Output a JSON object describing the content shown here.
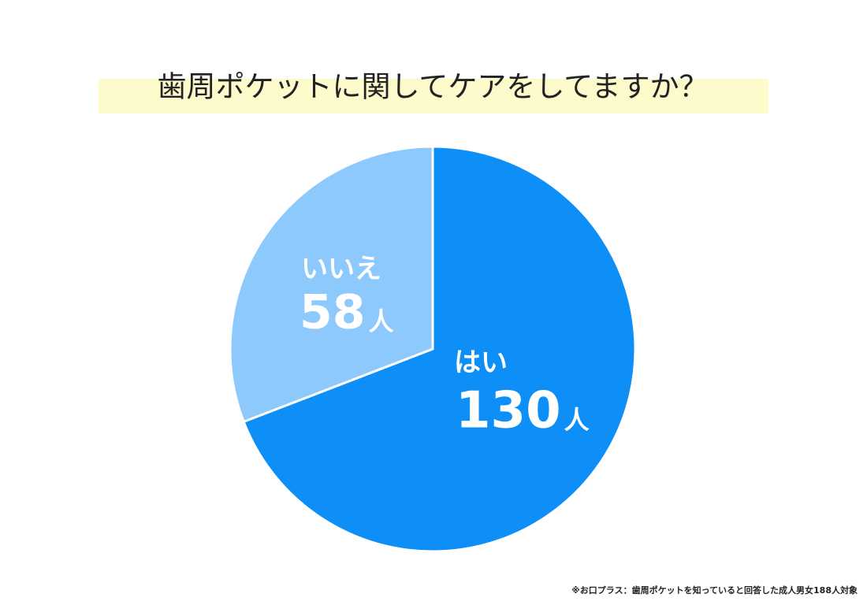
{
  "chart_data": {
    "type": "pie",
    "title": "歯周ポケットに関してケアをしてますか？",
    "categories": [
      "はい",
      "いいえ"
    ],
    "values": [
      130,
      58
    ],
    "unit": "人",
    "colors": [
      "#0d8ff7",
      "#8dc9fc"
    ],
    "note": "※お口プラス：歯周ポケットを知っていると回答した成人男女188人対象"
  }
}
